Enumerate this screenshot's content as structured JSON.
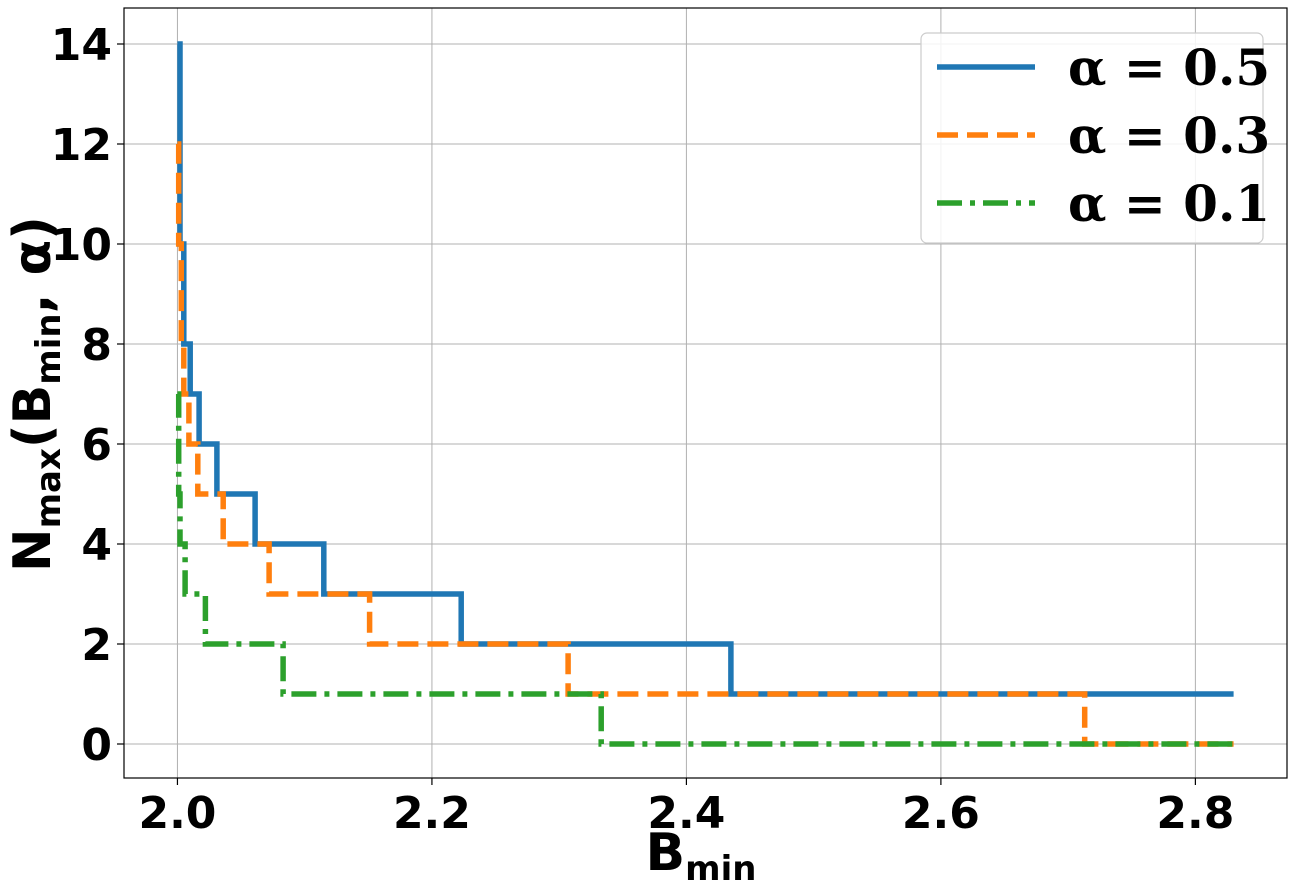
{
  "chart_data": {
    "type": "line",
    "xlabel": "B",
    "xlabel_sub": "min",
    "ylabel_main": "N",
    "ylabel_sub": "max",
    "ylabel_mid": "(B",
    "ylabel_sub2": "min",
    "ylabel_tail": ", α)",
    "xlim": [
      1.958,
      2.872
    ],
    "ylim": [
      -0.68,
      14.72
    ],
    "xticks": [
      2.0,
      2.2,
      2.4,
      2.6,
      2.8
    ],
    "xtick_labels": [
      "2.0",
      "2.2",
      "2.4",
      "2.6",
      "2.8"
    ],
    "yticks": [
      0,
      2,
      4,
      6,
      8,
      10,
      12,
      14
    ],
    "ytick_labels": [
      "0",
      "2",
      "4",
      "6",
      "8",
      "10",
      "12",
      "14"
    ],
    "grid": true,
    "legend_position": "top-right",
    "series": [
      {
        "name": "α = 0.5",
        "color": "#1f77b4",
        "dash": "solid",
        "points": [
          [
            2.0,
            14
          ],
          [
            2.002,
            14
          ],
          [
            2.002,
            10
          ],
          [
            2.005,
            10
          ],
          [
            2.005,
            8
          ],
          [
            2.01,
            8
          ],
          [
            2.01,
            7
          ],
          [
            2.017,
            7
          ],
          [
            2.017,
            6
          ],
          [
            2.031,
            6
          ],
          [
            2.031,
            5
          ],
          [
            2.061,
            5
          ],
          [
            2.061,
            4
          ],
          [
            2.115,
            4
          ],
          [
            2.115,
            3
          ],
          [
            2.223,
            3
          ],
          [
            2.223,
            2
          ],
          [
            2.435,
            2
          ],
          [
            2.435,
            1
          ],
          [
            2.83,
            1
          ]
        ]
      },
      {
        "name": "α = 0.3",
        "color": "#ff7f0e",
        "dash": "dashed",
        "points": [
          [
            2.0,
            12
          ],
          [
            2.001,
            12
          ],
          [
            2.001,
            10
          ],
          [
            2.003,
            10
          ],
          [
            2.003,
            8
          ],
          [
            2.005,
            8
          ],
          [
            2.005,
            7
          ],
          [
            2.009,
            7
          ],
          [
            2.009,
            6
          ],
          [
            2.016,
            6
          ],
          [
            2.016,
            5
          ],
          [
            2.036,
            5
          ],
          [
            2.036,
            4
          ],
          [
            2.072,
            4
          ],
          [
            2.072,
            3
          ],
          [
            2.151,
            3
          ],
          [
            2.151,
            2
          ],
          [
            2.307,
            2
          ],
          [
            2.307,
            1
          ],
          [
            2.713,
            1
          ],
          [
            2.713,
            0
          ],
          [
            2.83,
            0
          ]
        ]
      },
      {
        "name": "α = 0.1",
        "color": "#2ca02c",
        "dash": "dashdot",
        "points": [
          [
            2.0,
            7
          ],
          [
            2.001,
            7
          ],
          [
            2.001,
            5
          ],
          [
            2.002,
            5
          ],
          [
            2.002,
            4
          ],
          [
            2.006,
            4
          ],
          [
            2.006,
            3
          ],
          [
            2.022,
            3
          ],
          [
            2.022,
            2
          ],
          [
            2.083,
            2
          ],
          [
            2.083,
            1
          ],
          [
            2.333,
            1
          ],
          [
            2.333,
            0
          ],
          [
            2.83,
            0
          ]
        ]
      }
    ]
  }
}
